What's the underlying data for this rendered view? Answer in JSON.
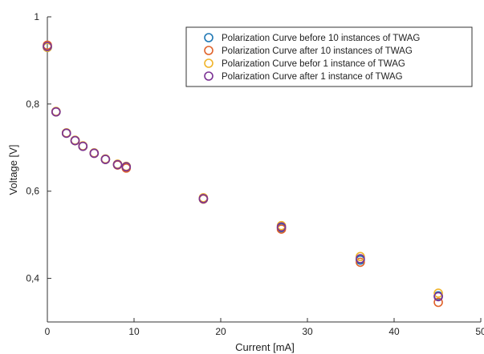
{
  "chart_data": {
    "type": "scatter",
    "title": "",
    "xlabel": "Current [mA]",
    "ylabel": "Voltage [V]",
    "xlim": [
      0,
      50
    ],
    "ylim": [
      0.3,
      1.0
    ],
    "xticks": [
      0,
      10,
      20,
      30,
      40,
      50
    ],
    "xtick_labels": [
      "0",
      "10",
      "20",
      "30",
      "40",
      "50"
    ],
    "yticks": [
      0.4,
      0.6,
      0.8,
      1.0
    ],
    "ytick_labels": [
      "0,4",
      "0,6",
      "0,8",
      "1"
    ],
    "grid": false,
    "legend_position": "top-right",
    "marker": "open-circle",
    "series": [
      {
        "name": "Polarization Curve before 10 instances of TWAG",
        "color": "#1f77b4",
        "points": [
          [
            0,
            0.93
          ],
          [
            1,
            0.782
          ],
          [
            2.2,
            0.733
          ],
          [
            3.2,
            0.716
          ],
          [
            4.1,
            0.703
          ],
          [
            5.4,
            0.687
          ],
          [
            6.7,
            0.673
          ],
          [
            8.1,
            0.661
          ],
          [
            9.1,
            0.655
          ],
          [
            18,
            0.582
          ],
          [
            27,
            0.516
          ],
          [
            36.1,
            0.442
          ],
          [
            45.1,
            0.36
          ]
        ]
      },
      {
        "name": "Polarization Curve after 10 instances of TWAG",
        "color": "#e0622a",
        "points": [
          [
            0,
            0.935
          ],
          [
            1,
            0.782
          ],
          [
            2.2,
            0.733
          ],
          [
            3.2,
            0.716
          ],
          [
            4.1,
            0.703
          ],
          [
            5.4,
            0.687
          ],
          [
            6.7,
            0.673
          ],
          [
            8.1,
            0.66
          ],
          [
            9.1,
            0.653
          ],
          [
            18,
            0.582
          ],
          [
            27,
            0.513
          ],
          [
            36.1,
            0.437
          ],
          [
            45.1,
            0.345
          ]
        ]
      },
      {
        "name": "Polarization Curve befor 1 instance of TWAG",
        "color": "#f0b429",
        "points": [
          [
            0,
            0.93
          ],
          [
            1,
            0.783
          ],
          [
            2.2,
            0.734
          ],
          [
            3.2,
            0.717
          ],
          [
            4.1,
            0.704
          ],
          [
            5.4,
            0.688
          ],
          [
            6.7,
            0.674
          ],
          [
            8.1,
            0.662
          ],
          [
            9.1,
            0.657
          ],
          [
            18,
            0.585
          ],
          [
            27,
            0.521
          ],
          [
            36.1,
            0.45
          ],
          [
            45.1,
            0.366
          ]
        ]
      },
      {
        "name": "Polarization Curve after 1 instance of TWAG",
        "color": "#7b3294",
        "points": [
          [
            0,
            0.932
          ],
          [
            1,
            0.782
          ],
          [
            2.2,
            0.733
          ],
          [
            3.2,
            0.716
          ],
          [
            4.1,
            0.703
          ],
          [
            5.4,
            0.687
          ],
          [
            6.7,
            0.673
          ],
          [
            8.1,
            0.661
          ],
          [
            9.1,
            0.656
          ],
          [
            18,
            0.583
          ],
          [
            27,
            0.518
          ],
          [
            36.1,
            0.445
          ],
          [
            45.1,
            0.358
          ]
        ]
      }
    ]
  }
}
